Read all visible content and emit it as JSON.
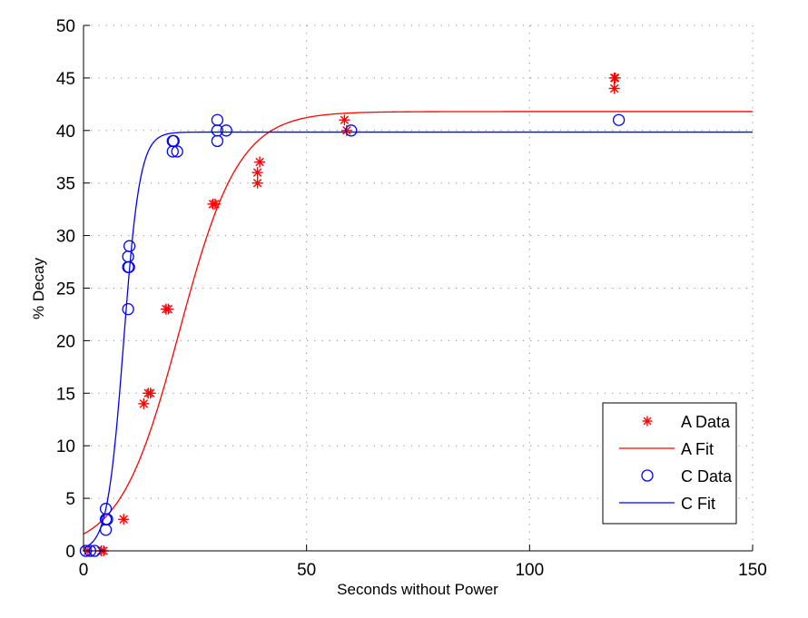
{
  "chart_data": {
    "type": "scatter",
    "title": "",
    "xlabel": "Seconds without Power",
    "ylabel": "% Decay",
    "xlim": [
      0,
      150
    ],
    "ylim": [
      0,
      50
    ],
    "xticks": [
      0,
      50,
      100,
      150
    ],
    "yticks": [
      0,
      5,
      10,
      15,
      20,
      25,
      30,
      35,
      40,
      45,
      50
    ],
    "grid": true,
    "legend_position": "lower right",
    "series": [
      {
        "name": "A Data",
        "kind": "scatter",
        "marker": "asterisk",
        "color": "#ff0000",
        "points": [
          [
            1,
            0
          ],
          [
            4,
            0
          ],
          [
            4.5,
            0
          ],
          [
            9,
            3
          ],
          [
            13.5,
            14
          ],
          [
            14.5,
            15
          ],
          [
            15,
            15
          ],
          [
            18.5,
            23
          ],
          [
            19,
            23
          ],
          [
            29,
            33
          ],
          [
            29.5,
            33
          ],
          [
            39,
            35
          ],
          [
            39,
            36
          ],
          [
            39.5,
            37
          ],
          [
            58.5,
            41
          ],
          [
            59,
            40
          ],
          [
            119,
            45
          ],
          [
            119.2,
            45
          ],
          [
            119,
            44
          ]
        ]
      },
      {
        "name": "A Fit",
        "kind": "line",
        "color": "#ff0000",
        "model": "logistic",
        "params": {
          "L": 41.8,
          "k": 0.15,
          "x0": 21.5
        }
      },
      {
        "name": "C Data",
        "kind": "scatter",
        "marker": "circle",
        "color": "#0000ff",
        "points": [
          [
            0.5,
            0
          ],
          [
            1.5,
            0
          ],
          [
            2.5,
            0
          ],
          [
            5,
            2
          ],
          [
            5,
            3
          ],
          [
            5.3,
            3
          ],
          [
            5,
            4
          ],
          [
            10,
            23
          ],
          [
            10,
            27
          ],
          [
            10.2,
            27
          ],
          [
            10,
            28
          ],
          [
            10.3,
            29
          ],
          [
            20,
            38
          ],
          [
            21,
            38
          ],
          [
            20,
            39
          ],
          [
            20.2,
            39
          ],
          [
            30,
            39
          ],
          [
            30,
            40
          ],
          [
            30,
            41
          ],
          [
            32,
            40
          ],
          [
            60,
            40
          ],
          [
            120,
            41
          ]
        ]
      },
      {
        "name": "C Fit",
        "kind": "line",
        "color": "#0000ff",
        "model": "logistic",
        "params": {
          "L": 39.85,
          "k": 0.55,
          "x0": 9.0
        }
      }
    ]
  },
  "legend": {
    "items": [
      {
        "label": "A Data",
        "symbol": "asterisk",
        "color": "#ff0000"
      },
      {
        "label": "A Fit",
        "symbol": "line",
        "color": "#ff0000"
      },
      {
        "label": "C Data",
        "symbol": "circle",
        "color": "#0000ff"
      },
      {
        "label": "C Fit",
        "symbol": "line",
        "color": "#0000ff"
      }
    ]
  },
  "axes": {
    "xlabel": "Seconds without Power",
    "ylabel": "% Decay"
  }
}
